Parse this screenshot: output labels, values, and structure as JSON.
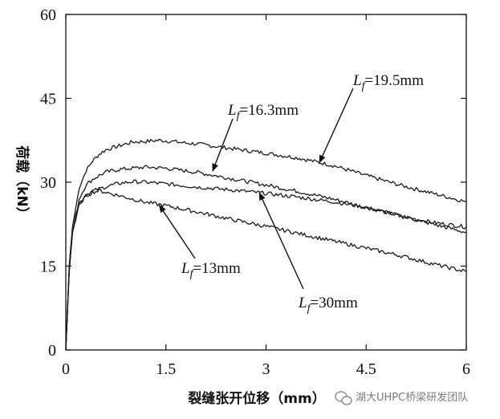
{
  "chart_data": {
    "type": "line",
    "xlabel": "裂缝张开位移（mm）",
    "ylabel": "荷载（kN）",
    "xlim": [
      0,
      6
    ],
    "ylim": [
      0,
      60
    ],
    "xticks": [
      "0",
      "1.5",
      "3",
      "4.5",
      "6"
    ],
    "yticks": [
      "0",
      "15",
      "30",
      "45",
      "60"
    ],
    "xtick_values": [
      0,
      1.5,
      3,
      4.5,
      6
    ],
    "ytick_values": [
      0,
      15,
      30,
      45,
      60
    ],
    "grid": false,
    "series": [
      {
        "name": "Lf=19.5mm",
        "line_color": "#1a1a1a",
        "x": [
          0,
          0.05,
          0.1,
          0.2,
          0.3,
          0.4,
          0.5,
          0.6,
          0.8,
          1.0,
          1.2,
          1.4,
          1.6,
          1.8,
          2.0,
          2.5,
          3.0,
          3.5,
          4.0,
          4.5,
          5.0,
          5.5,
          6.0
        ],
        "y": [
          0,
          15,
          22,
          29,
          32,
          33.8,
          35,
          35.8,
          36.5,
          37.2,
          37.3,
          37.5,
          37.3,
          37.0,
          36.8,
          36.0,
          35.2,
          34.3,
          33.0,
          31.2,
          29.5,
          28.0,
          26.5
        ]
      },
      {
        "name": "Lf=16.3mm",
        "line_color": "#1a1a1a",
        "x": [
          0,
          0.05,
          0.1,
          0.2,
          0.3,
          0.4,
          0.5,
          0.6,
          0.8,
          1.0,
          1.2,
          1.5,
          2.0,
          2.5,
          3.0,
          3.5,
          4.0,
          4.5,
          5.0,
          5.5,
          6.0
        ],
        "y": [
          0,
          14,
          21,
          27,
          29.5,
          30.5,
          31.2,
          31.8,
          32.3,
          32.5,
          32.7,
          32.5,
          31.7,
          30.6,
          29.5,
          28.3,
          27.0,
          25.5,
          24.0,
          22.8,
          22.0
        ]
      },
      {
        "name": "Lf=30mm",
        "line_color": "#1a1a1a",
        "x": [
          0,
          0.05,
          0.1,
          0.2,
          0.3,
          0.4,
          0.5,
          0.6,
          0.8,
          1.0,
          1.2,
          1.5,
          2.0,
          2.5,
          3.0,
          3.5,
          4.0,
          4.5,
          5.0,
          5.5,
          6.0
        ],
        "y": [
          0,
          14,
          21,
          26,
          27.8,
          28.4,
          28.8,
          29.2,
          29.8,
          30.1,
          30.0,
          29.7,
          29.1,
          28.6,
          28.0,
          27.3,
          26.5,
          25.5,
          24.0,
          22.5,
          21.0
        ]
      },
      {
        "name": "Lf=13mm",
        "line_color": "#1a1a1a",
        "x": [
          0,
          0.05,
          0.1,
          0.2,
          0.3,
          0.4,
          0.5,
          0.6,
          0.8,
          1.0,
          1.2,
          1.5,
          2.0,
          2.5,
          3.0,
          3.5,
          4.0,
          4.5,
          5.0,
          5.5,
          6.0
        ],
        "y": [
          0,
          14,
          21,
          26,
          27.5,
          28.2,
          28.5,
          28.2,
          27.6,
          27.0,
          26.4,
          25.8,
          24.6,
          23.3,
          22.1,
          20.8,
          19.5,
          18.2,
          16.9,
          15.4,
          14.0
        ]
      }
    ],
    "annotations": [
      {
        "label_main": "L",
        "label_sub": "f",
        "label_rest": "=19.5mm",
        "arrow_to": [
          3.8,
          33.5
        ]
      },
      {
        "label_main": "L",
        "label_sub": "f",
        "label_rest": "=16.3mm",
        "arrow_to": [
          2.2,
          32.0
        ]
      },
      {
        "label_main": "L",
        "label_sub": "f",
        "label_rest": "=13mm",
        "arrow_to": [
          1.4,
          25.9
        ]
      },
      {
        "label_main": "L",
        "label_sub": "f",
        "label_rest": "=30mm",
        "arrow_to": [
          2.9,
          28.1
        ]
      }
    ]
  },
  "watermark": {
    "text": "湖大UHPC桥梁研发团队",
    "icon": "wechat-icon"
  }
}
